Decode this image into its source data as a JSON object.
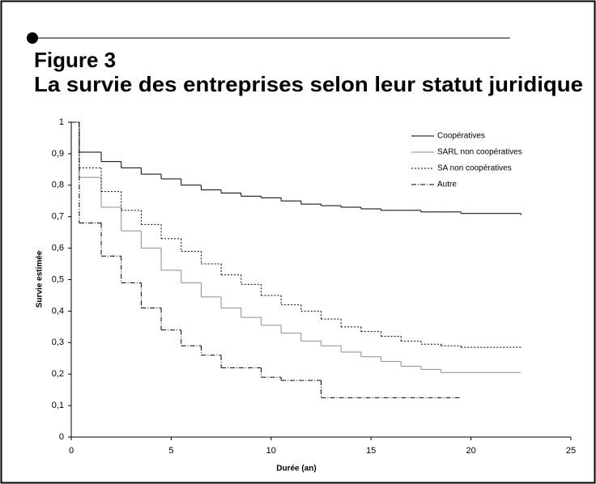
{
  "chart_data": {
    "type": "line",
    "step": "post",
    "figure_label": "Figure 3",
    "title": "La survie des entreprises selon leur statut juridique",
    "x_label": "Durée (an)",
    "y_label": "Survie estimée",
    "xlim": [
      0,
      25
    ],
    "xticks": [
      0,
      5,
      10,
      15,
      20,
      25
    ],
    "ylim": [
      0,
      1
    ],
    "yticks": [
      0,
      {
        "value": 0.1,
        "label": "0,1"
      },
      {
        "value": 0.2,
        "label": "0,2"
      },
      {
        "value": 0.3,
        "label": "0,3"
      },
      {
        "value": 0.4,
        "label": "0,4"
      },
      {
        "value": 0.5,
        "label": "0,5"
      },
      {
        "value": 0.6,
        "label": "0,6"
      },
      {
        "value": 0.7,
        "label": "0,7"
      },
      {
        "value": 0.8,
        "label": "0,8"
      },
      {
        "value": 0.9,
        "label": "0,9"
      },
      1
    ],
    "grid": false,
    "legend": "top-right",
    "series": [
      {
        "name": "Coopératives",
        "color": "#000000",
        "dash": "none",
        "x": [
          0,
          0.4,
          1.5,
          2.5,
          3.5,
          4.5,
          5.5,
          6.5,
          7.5,
          8.5,
          9.5,
          10.5,
          11.5,
          12.5,
          13.5,
          14.5,
          15.5,
          16.5,
          17.5,
          18.5,
          19.5,
          20.5,
          22.5
        ],
        "values": [
          1,
          0.905,
          0.875,
          0.855,
          0.835,
          0.82,
          0.8,
          0.785,
          0.775,
          0.765,
          0.76,
          0.75,
          0.74,
          0.735,
          0.73,
          0.725,
          0.72,
          0.72,
          0.715,
          0.715,
          0.71,
          0.71,
          0.705
        ]
      },
      {
        "name": "SARL non coopératives",
        "color": "#8c8c8c",
        "dash": "none",
        "x": [
          0,
          0.4,
          1.5,
          2.5,
          3.5,
          4.5,
          5.5,
          6.5,
          7.5,
          8.5,
          9.5,
          10.5,
          11.5,
          12.5,
          13.5,
          14.5,
          15.5,
          16.5,
          17.5,
          18.5,
          22.5
        ],
        "values": [
          1,
          0.825,
          0.73,
          0.655,
          0.6,
          0.53,
          0.49,
          0.445,
          0.41,
          0.38,
          0.355,
          0.33,
          0.305,
          0.29,
          0.27,
          0.255,
          0.24,
          0.225,
          0.215,
          0.205,
          0.205
        ]
      },
      {
        "name": "SA non coopératives",
        "color": "#000000",
        "dash": "2,2",
        "x": [
          0,
          0.4,
          1.5,
          2.5,
          3.5,
          4.5,
          5.5,
          6.5,
          7.5,
          8.5,
          9.5,
          10.5,
          11.5,
          12.5,
          13.5,
          14.5,
          15.5,
          16.5,
          17.5,
          18.5,
          19.5,
          22.5
        ],
        "values": [
          1,
          0.855,
          0.78,
          0.72,
          0.675,
          0.63,
          0.59,
          0.55,
          0.515,
          0.485,
          0.45,
          0.42,
          0.4,
          0.375,
          0.35,
          0.335,
          0.32,
          0.305,
          0.295,
          0.29,
          0.285,
          0.285
        ]
      },
      {
        "name": "Autre",
        "color": "#000000",
        "dash": "6,2,1,2",
        "x": [
          0,
          0.4,
          1.5,
          2.5,
          3.5,
          4.5,
          5.5,
          6.5,
          7.5,
          9.5,
          10.5,
          12.5,
          19.5
        ],
        "values": [
          1,
          0.68,
          0.575,
          0.49,
          0.41,
          0.34,
          0.29,
          0.26,
          0.22,
          0.19,
          0.18,
          0.125,
          0.125
        ]
      }
    ]
  }
}
